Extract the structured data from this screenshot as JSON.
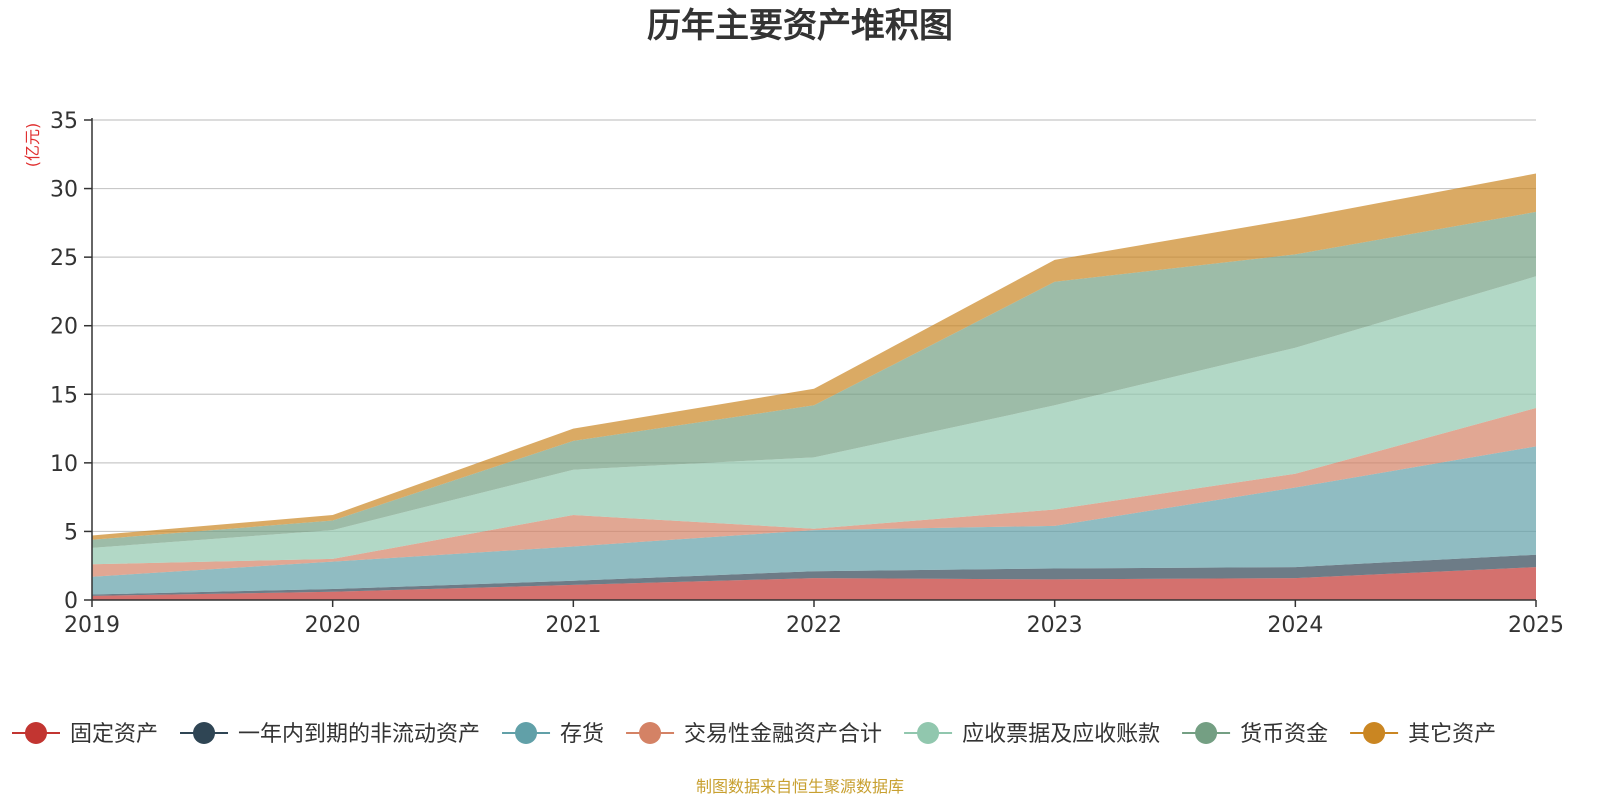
{
  "chart_data": {
    "type": "area",
    "stacked": true,
    "title": "历年主要资产堆积图",
    "unit_label": "(亿元)",
    "x": [
      "2019",
      "2020",
      "2021",
      "2022",
      "2023",
      "2024",
      "2025"
    ],
    "ylim": [
      0,
      35
    ],
    "yticks": [
      0,
      5,
      10,
      15,
      20,
      25,
      30,
      35
    ],
    "grid": true,
    "legend_position": "bottom",
    "series": [
      {
        "name": "固定资产",
        "color": "#c23531",
        "values": [
          0.3,
          0.6,
          1.1,
          1.6,
          1.5,
          1.6,
          2.4
        ]
      },
      {
        "name": "一年内到期的非流动资产",
        "color": "#2f4554",
        "values": [
          0.1,
          0.2,
          0.3,
          0.5,
          0.8,
          0.8,
          0.9
        ]
      },
      {
        "name": "存货",
        "color": "#61a0a8",
        "values": [
          1.3,
          2.0,
          2.5,
          3.0,
          3.1,
          5.8,
          7.9
        ]
      },
      {
        "name": "交易性金融资产合计",
        "color": "#d48265",
        "values": [
          0.9,
          0.2,
          2.3,
          0.1,
          1.2,
          1.0,
          2.8
        ]
      },
      {
        "name": "应收票据及应收账款",
        "color": "#91c7ae",
        "values": [
          1.2,
          2.1,
          3.3,
          5.2,
          7.6,
          9.2,
          9.6
        ]
      },
      {
        "name": "货币资金",
        "color": "#749f83",
        "values": [
          0.6,
          0.7,
          2.1,
          3.8,
          9.0,
          6.8,
          4.7
        ]
      },
      {
        "name": "其它资产",
        "color": "#ca8622",
        "values": [
          0.3,
          0.4,
          0.9,
          1.2,
          1.6,
          2.6,
          2.8
        ]
      }
    ]
  },
  "footer": {
    "source_text": "制图数据来自恒生聚源数据库",
    "color": "#c8a030"
  },
  "style": {
    "unit_color": "#e03030",
    "grid_color": "#c8c8c8",
    "axis_color": "#333333"
  }
}
